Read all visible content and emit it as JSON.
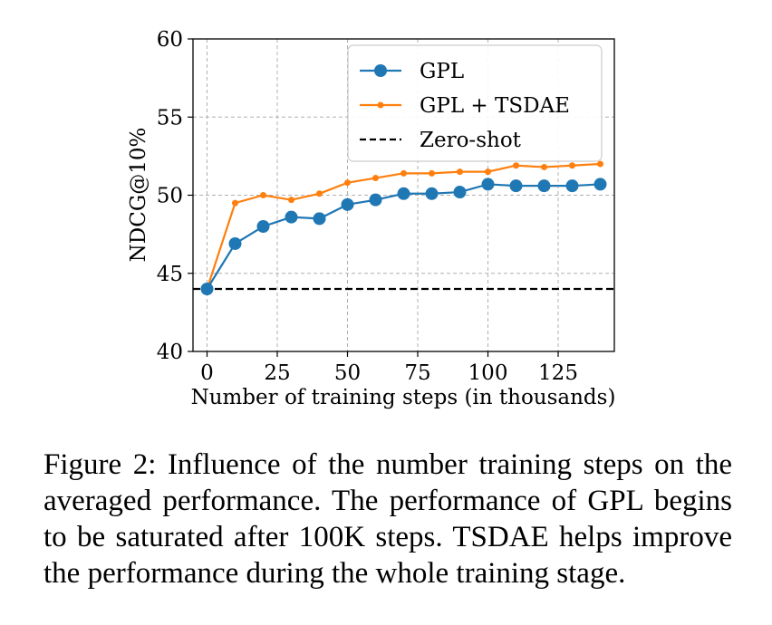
{
  "chart_data": {
    "type": "line",
    "xlabel": "Number of training steps (in thousands)",
    "ylabel": "NDCG@10%",
    "xlim": [
      -5,
      145
    ],
    "ylim": [
      40,
      60
    ],
    "xticks": [
      0,
      25,
      50,
      75,
      100,
      125
    ],
    "yticks": [
      40,
      45,
      50,
      55,
      60
    ],
    "grid": true,
    "legend_position": "top-right",
    "series": [
      {
        "name": "GPL",
        "color": "#1f77b4",
        "marker": "large-circle",
        "x": [
          0,
          10,
          20,
          30,
          40,
          50,
          60,
          70,
          80,
          90,
          100,
          110,
          120,
          130,
          140
        ],
        "values": [
          44.0,
          46.9,
          48.0,
          48.6,
          48.5,
          49.4,
          49.7,
          50.1,
          50.1,
          50.2,
          50.7,
          50.6,
          50.6,
          50.6,
          50.7
        ]
      },
      {
        "name": "GPL + TSDAE",
        "color": "#ff7f0e",
        "marker": "small-circle",
        "x": [
          0,
          10,
          20,
          30,
          40,
          50,
          60,
          70,
          80,
          90,
          100,
          110,
          120,
          130,
          140
        ],
        "values": [
          44.0,
          49.5,
          50.0,
          49.7,
          50.1,
          50.8,
          51.1,
          51.4,
          51.4,
          51.5,
          51.5,
          51.9,
          51.8,
          51.9,
          52.0
        ]
      },
      {
        "name": "Zero-shot",
        "color": "#000000",
        "style": "dashed",
        "constant": 44.0
      }
    ]
  },
  "caption": "Figure 2: Influence of the number training steps on the averaged performance. The performance of GPL begins to be saturated after 100K steps. TSDAE helps improve the performance during the whole training stage."
}
